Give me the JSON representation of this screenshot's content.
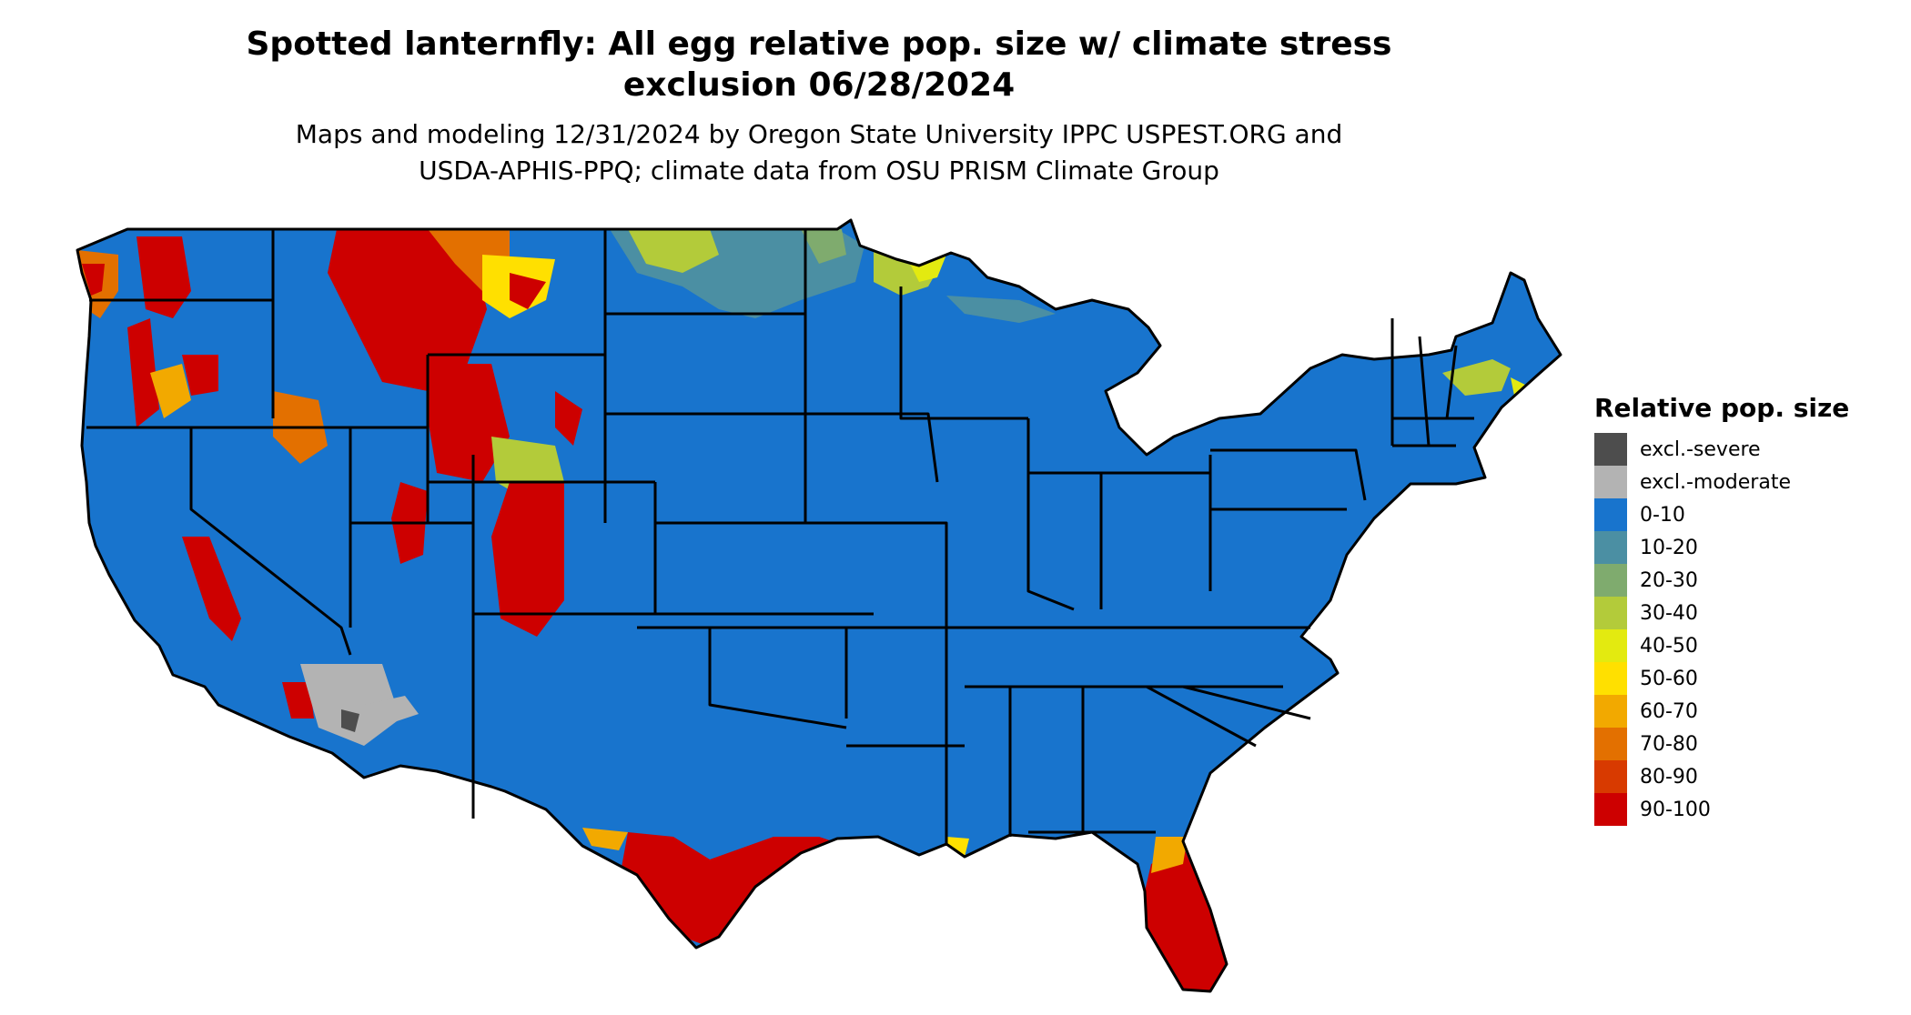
{
  "title_lines": [
    "Spotted lanternfly: All egg relative pop. size w/ climate stress",
    "exclusion 06/28/2024"
  ],
  "subtitle_lines": [
    "Maps and modeling 12/31/2024 by Oregon State University IPPC USPEST.ORG and",
    "USDA-APHIS-PPQ; climate data from OSU PRISM Climate Group"
  ],
  "legend": {
    "title": "Relative pop. size",
    "items": [
      {
        "label": "excl.-severe",
        "color": "#4d4d4d"
      },
      {
        "label": "excl.-moderate",
        "color": "#b3b3b3"
      },
      {
        "label": "0-10",
        "color": "#1874cd"
      },
      {
        "label": "10-20",
        "color": "#4b8fa3"
      },
      {
        "label": "20-30",
        "color": "#7fab6e"
      },
      {
        "label": "30-40",
        "color": "#b3cb3a"
      },
      {
        "label": "40-50",
        "color": "#e3ea10"
      },
      {
        "label": "50-60",
        "color": "#ffe000"
      },
      {
        "label": "60-70",
        "color": "#f2a900"
      },
      {
        "label": "70-80",
        "color": "#e37000"
      },
      {
        "label": "80-90",
        "color": "#d83a00"
      },
      {
        "label": "90-100",
        "color": "#cd0000"
      }
    ]
  },
  "map": {
    "region": "Contiguous United States",
    "base_color": "#1874cd",
    "border_color": "#000000"
  }
}
